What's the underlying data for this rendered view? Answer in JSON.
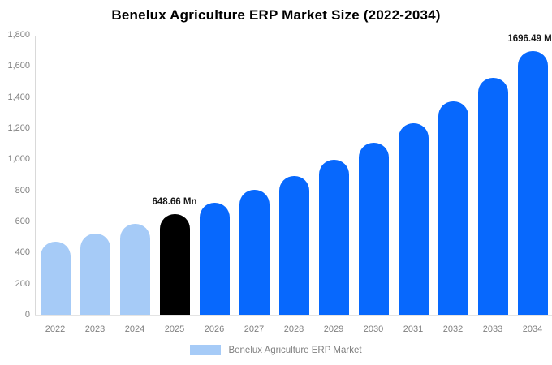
{
  "title": "Benelux Agriculture ERP Market Size (2022-2034)",
  "legend": {
    "label": "Benelux Agriculture ERP Market",
    "swatch_color": "#a6cbf7"
  },
  "colors": {
    "bar_light_blue": "#a6cbf7",
    "bar_blue": "#0768fd",
    "bar_black": "#000000",
    "axis_line": "#d9d9d9",
    "tick_text": "#808080",
    "annotation_text": "#1a1a1a",
    "title_text": "#000000",
    "background": "#ffffff"
  },
  "y_axis": {
    "tick_labels": [
      "1,800",
      "1,600",
      "1,400",
      "1,200",
      "1,000",
      "800",
      "600",
      "400",
      "200",
      "0"
    ]
  },
  "chart_data": {
    "type": "bar",
    "title": "Benelux Agriculture ERP Market Size (2022-2034)",
    "categories": [
      "2022",
      "2023",
      "2024",
      "2025",
      "2026",
      "2027",
      "2028",
      "2029",
      "2030",
      "2031",
      "2032",
      "2033",
      "2034"
    ],
    "values": [
      471,
      524,
      583,
      648.66,
      722,
      803,
      894,
      994,
      1106,
      1231,
      1370,
      1524,
      1696.49
    ],
    "unit": "Mn",
    "bar_colors": [
      "#a6cbf7",
      "#a6cbf7",
      "#a6cbf7",
      "#000000",
      "#0768fd",
      "#0768fd",
      "#0768fd",
      "#0768fd",
      "#0768fd",
      "#0768fd",
      "#0768fd",
      "#0768fd",
      "#0768fd"
    ],
    "data_labels": [
      {
        "category": "2025",
        "text": "648.66 Mn"
      },
      {
        "category": "2034",
        "text": "1696.49 Mn"
      }
    ],
    "xlabel": "",
    "ylabel": "",
    "ylim": [
      0,
      1800
    ],
    "ytick_step": 200,
    "grid": false,
    "legend_position": "bottom",
    "legend_entries": [
      "Benelux Agriculture ERP Market"
    ]
  }
}
